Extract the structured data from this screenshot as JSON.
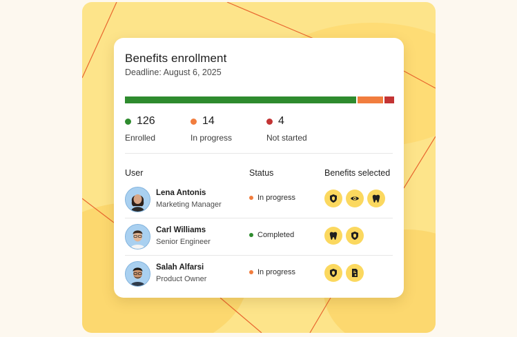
{
  "card": {
    "title": "Benefits enrollment",
    "deadline": "Deadline: August 6, 2025"
  },
  "progress": {
    "enrolled_fraction": 0.863,
    "in_progress_fraction": 0.0959,
    "not_started_fraction": 0.0274
  },
  "stats": [
    {
      "value": "126",
      "label": "Enrolled",
      "color": "#2e8b2e"
    },
    {
      "value": "14",
      "label": "In progress",
      "color": "#f17d3e"
    },
    {
      "value": "4",
      "label": "Not started",
      "color": "#c33434"
    }
  ],
  "table": {
    "headers": {
      "user": "User",
      "status": "Status",
      "benefits": "Benefits selected"
    },
    "rows": [
      {
        "name": "Lena Antonis",
        "role": "Marketing Manager",
        "status": "In progress",
        "status_color": "#f17d3e",
        "benefits": [
          "shield-icon",
          "eye-icon",
          "tooth-icon"
        ]
      },
      {
        "name": "Carl Williams",
        "role": "Senior Engineer",
        "status": "Completed",
        "status_color": "#2e8b2e",
        "benefits": [
          "tooth-icon",
          "shield-icon"
        ]
      },
      {
        "name": "Salah Alfarsi",
        "role": "Product Owner",
        "status": "In progress",
        "status_color": "#f17d3e",
        "benefits": [
          "shield-icon",
          "document-icon"
        ]
      }
    ]
  }
}
